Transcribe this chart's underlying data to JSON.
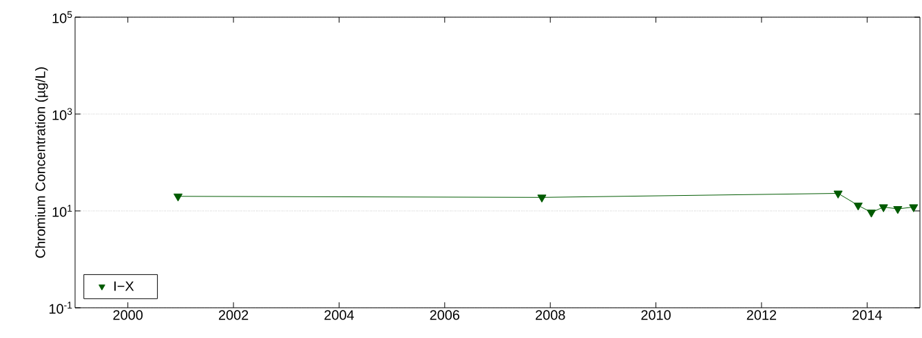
{
  "chart_data": {
    "type": "line",
    "ylabel": "Chromium Concentration (µg/L)",
    "x": [
      2000.95,
      2007.84,
      2013.45,
      2013.83,
      2014.08,
      2014.31,
      2014.58,
      2014.88
    ],
    "series": [
      {
        "name": "I−X",
        "color": "#005a00",
        "values": [
          20,
          19,
          23,
          13,
          9.3,
          12,
          11,
          12
        ]
      }
    ],
    "xlim": [
      1999,
      2015
    ],
    "xticks": [
      2000,
      2002,
      2004,
      2006,
      2008,
      2010,
      2012,
      2014
    ],
    "ylim": [
      0.1,
      100000
    ],
    "yticks": [
      {
        "value": 0.1,
        "label": "10$^{-1}$"
      },
      {
        "value": 10,
        "label": "10$^{1}$"
      },
      {
        "value": 1000,
        "label": "10$^{3}$"
      },
      {
        "value": 100000,
        "label": "10$^{5}$"
      }
    ],
    "log": "y",
    "grid": "y",
    "legend": "bottom left",
    "marker": "triangle",
    "line_style": "solid"
  }
}
